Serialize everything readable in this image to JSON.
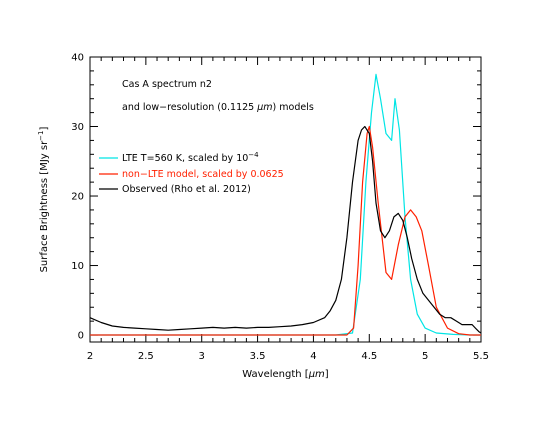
{
  "chart_data": {
    "type": "line",
    "title": "",
    "xlabel": "Wavelength [",
    "xlabel_unit": "μm",
    "xlabel_close": "]",
    "ylabel": "Surface Brightness [MJy sr",
    "ylabel_exp": "−1",
    "ylabel_close": "]",
    "xlim": [
      2,
      5.5
    ],
    "ylim": [
      -1,
      40
    ],
    "xticks": [
      2,
      2.5,
      3,
      3.5,
      4,
      4.5,
      5,
      5.5
    ],
    "xtick_labels": [
      "2",
      "2.5",
      "3",
      "3.5",
      "4",
      "4.5",
      "5",
      "5.5"
    ],
    "yticks": [
      0,
      10,
      20,
      30,
      40
    ],
    "ytick_labels": [
      "0",
      "10",
      "20",
      "30",
      "40"
    ],
    "grid": false,
    "annotations": {
      "line1": "Cas A spectrum n2",
      "line2_pre": "and low−resolution (0.1125 ",
      "line2_unit": "μm",
      "line2_post": ") models"
    },
    "legend_position": "top-left",
    "series": [
      {
        "name": "LTE T=560 K, scaled by 10",
        "name_exp": "−4",
        "color": "#00e5e5",
        "x": [
          2.0,
          4.2,
          4.35,
          4.42,
          4.47,
          4.52,
          4.56,
          4.6,
          4.65,
          4.7,
          4.73,
          4.77,
          4.82,
          4.87,
          4.93,
          5.0,
          5.1,
          5.25,
          5.4,
          5.5
        ],
        "y": [
          0,
          0,
          0.3,
          8,
          22,
          32,
          37.5,
          34,
          29,
          28,
          34,
          29.5,
          17,
          8,
          3,
          1,
          0.3,
          0.1,
          0,
          0
        ]
      },
      {
        "name": "non−LTE model, scaled by 0.0625",
        "color": "#ff2000",
        "x": [
          2.0,
          4.3,
          4.36,
          4.4,
          4.44,
          4.48,
          4.5,
          4.53,
          4.58,
          4.65,
          4.7,
          4.76,
          4.82,
          4.87,
          4.92,
          4.97,
          5.03,
          5.1,
          5.2,
          5.3,
          5.4,
          5.5
        ],
        "y": [
          0,
          0,
          1,
          10,
          22,
          29,
          30,
          27,
          19,
          9,
          8,
          13,
          17,
          18,
          17,
          15,
          10,
          4,
          1,
          0.2,
          0,
          0
        ]
      },
      {
        "name": "Observed (Rho et al. 2012)",
        "color": "#000000",
        "x": [
          2.0,
          2.1,
          2.2,
          2.3,
          2.4,
          2.5,
          2.6,
          2.7,
          2.8,
          2.9,
          3.0,
          3.1,
          3.2,
          3.3,
          3.4,
          3.5,
          3.6,
          3.7,
          3.8,
          3.9,
          4.0,
          4.1,
          4.15,
          4.2,
          4.25,
          4.3,
          4.35,
          4.4,
          4.43,
          4.46,
          4.5,
          4.53,
          4.56,
          4.6,
          4.64,
          4.68,
          4.72,
          4.76,
          4.8,
          4.84,
          4.88,
          4.93,
          4.98,
          5.03,
          5.08,
          5.13,
          5.18,
          5.23,
          5.28,
          5.33,
          5.38,
          5.42,
          5.45,
          5.48,
          5.5
        ],
        "y": [
          2.5,
          1.8,
          1.3,
          1.1,
          1.0,
          0.9,
          0.8,
          0.7,
          0.8,
          0.9,
          1.0,
          1.1,
          1.0,
          1.1,
          1.0,
          1.1,
          1.1,
          1.2,
          1.3,
          1.5,
          1.8,
          2.5,
          3.5,
          5,
          8,
          14,
          22,
          28,
          29.5,
          30,
          29,
          25,
          19,
          15,
          14,
          15,
          17,
          17.5,
          16.5,
          14,
          11,
          8,
          6,
          5,
          4,
          3,
          2.5,
          2.5,
          2,
          1.5,
          1.5,
          1.5,
          1,
          0.5,
          0.3
        ]
      }
    ]
  }
}
